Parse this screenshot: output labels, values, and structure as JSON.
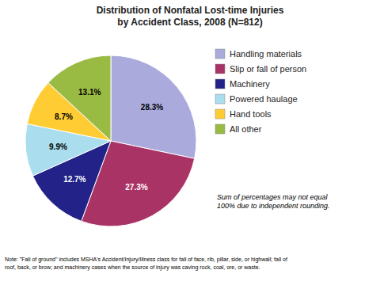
{
  "chart_data": {
    "type": "pie",
    "title": "Distribution of Nonfatal Lost-time Injuries\nby Accident Class, 2008 (N=812)",
    "categories": [
      "Handling materials",
      "Slip or fall of person",
      "Machinery",
      "Powered haulage",
      "Hand tools",
      "All other"
    ],
    "values": [
      28.3,
      27.3,
      12.7,
      9.9,
      8.7,
      13.1
    ],
    "value_labels": [
      "28.3%",
      "27.3%",
      "12.7%",
      "9.9%",
      "8.7%",
      "13.1%"
    ],
    "colors": [
      "#aaaadd",
      "#aa3366",
      "#222288",
      "#aaddee",
      "#ffcc33",
      "#99bb44"
    ],
    "data_labels": true,
    "legend": "right",
    "annotations": [
      "Sum of percentages may not equal\n100% due to independent rounding.",
      "Note: \"Fall of ground\" includes MSHA's Accident/Injury/Illness class for fall of face, rib, pillar, side, or highwall; fall of\nroof, back, or brow; and machinery cases when the source of injury was caving rock, coal, ore, or waste."
    ]
  }
}
